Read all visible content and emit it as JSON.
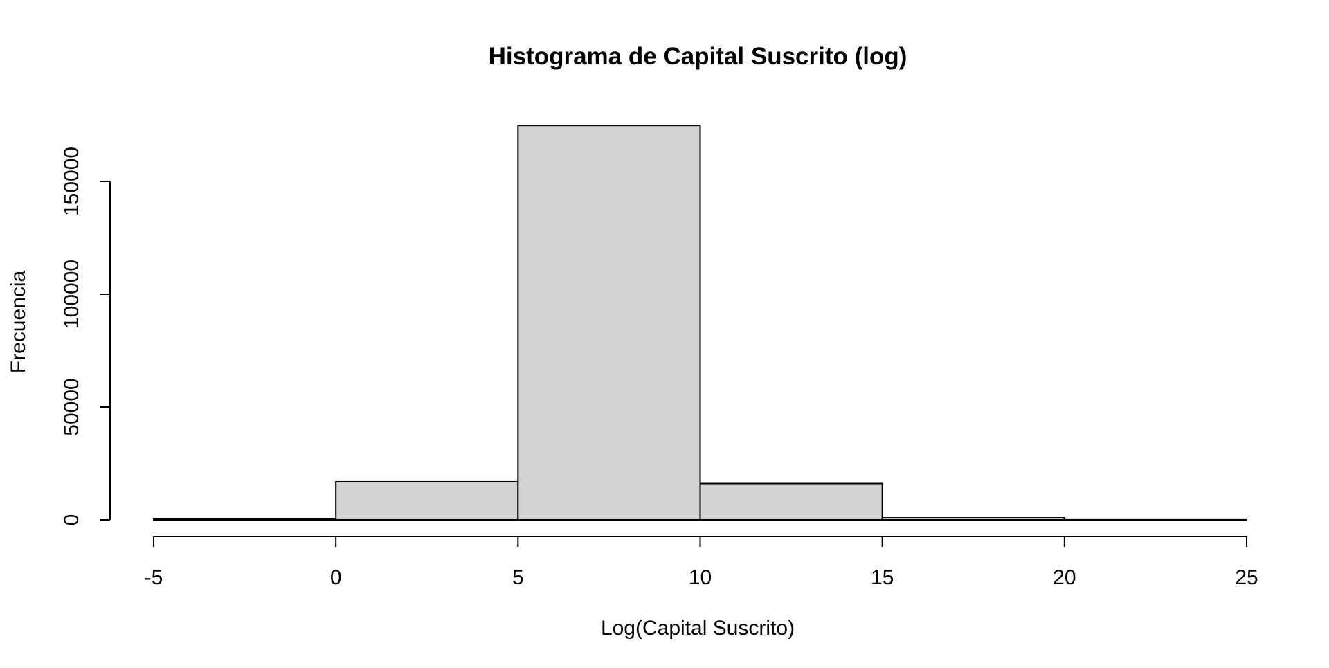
{
  "chart_data": {
    "type": "bar",
    "subtype": "histogram",
    "title": "Histograma de Capital Suscrito (log)",
    "xlabel": "Log(Capital Suscrito)",
    "ylabel": "Frecuencia",
    "bins": [
      {
        "from": -5,
        "to": 0,
        "count": 300
      },
      {
        "from": 0,
        "to": 5,
        "count": 16900
      },
      {
        "from": 5,
        "to": 10,
        "count": 174800
      },
      {
        "from": 10,
        "to": 15,
        "count": 16100
      },
      {
        "from": 15,
        "to": 20,
        "count": 900
      },
      {
        "from": 20,
        "to": 25,
        "count": 30
      }
    ],
    "xlim": [
      -5,
      25
    ],
    "ylim": [
      0,
      150000
    ],
    "x_ticks": [
      "-5",
      "0",
      "5",
      "10",
      "15",
      "20",
      "25"
    ],
    "y_ticks": [
      "0",
      "50000",
      "100000",
      "150000"
    ],
    "grid": false,
    "legend": "none",
    "bar_fill": "#d3d3d3",
    "bar_stroke": "#000000"
  }
}
